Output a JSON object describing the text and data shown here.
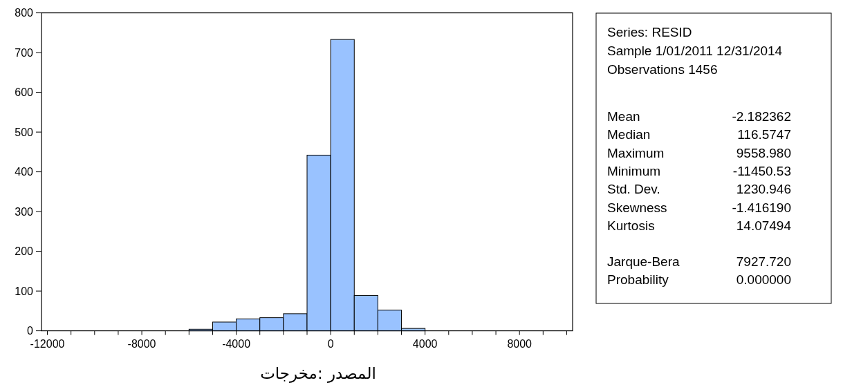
{
  "chart_data": {
    "type": "histogram",
    "bins": [
      -6000,
      -5000,
      -4000,
      -3000,
      -2000,
      -1000,
      0,
      1000,
      2000,
      3000,
      4000
    ],
    "values": [
      4,
      22,
      30,
      33,
      43,
      442,
      733,
      89,
      52,
      6
    ],
    "color": "#99c2ff",
    "xlim": [
      -12250,
      10250
    ],
    "xticks": [
      -12000,
      {
        "value": -11000,
        "label": null
      },
      {
        "value": -10000,
        "label": null
      },
      {
        "value": -9000,
        "label": null
      },
      -8000,
      {
        "value": -7000,
        "label": null
      },
      {
        "value": -6000,
        "label": null
      },
      {
        "value": -5000,
        "label": null
      },
      -4000,
      {
        "value": -3000,
        "label": null
      },
      {
        "value": -2000,
        "label": null
      },
      {
        "value": -1000,
        "label": null
      },
      0,
      {
        "value": 1000,
        "label": null
      },
      {
        "value": 2000,
        "label": null
      },
      {
        "value": 3000,
        "label": null
      },
      4000,
      {
        "value": 5000,
        "label": null
      },
      {
        "value": 6000,
        "label": null
      },
      {
        "value": 7000,
        "label": null
      },
      8000,
      {
        "value": 9000,
        "label": null
      },
      {
        "value": 10000,
        "label": null
      }
    ],
    "ylim": [
      0,
      800
    ],
    "yticks": [
      0,
      100,
      200,
      300,
      400,
      500,
      600,
      700,
      800
    ],
    "annotations": [
      "Series: RESID",
      "Sample 1/01/2011 12/31/2014",
      "Observations 1456",
      "Mean",
      "-2.182362",
      "Median",
      "116.5747",
      "Maximum",
      "9558.980",
      "Minimum",
      "-11450.53",
      "Std. Dev.",
      "1230.946",
      "Skewness",
      "-1.416190",
      "Kurtosis",
      "14.07494",
      "Jarque-Bera",
      "7927.720",
      "Probability",
      "0.000000",
      "المصدر :مخرجات"
    ]
  }
}
